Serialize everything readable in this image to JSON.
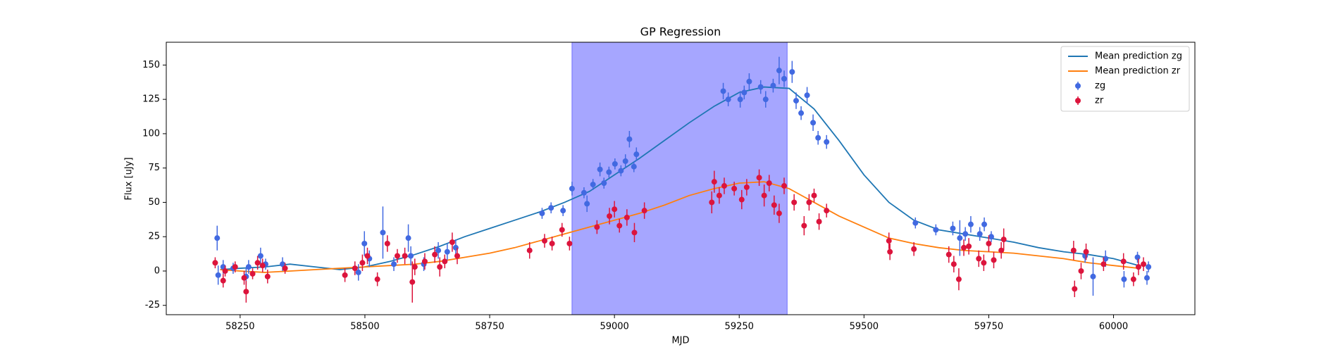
{
  "chart_data": {
    "type": "errorbar",
    "title": "GP Regression",
    "xlabel": "MJD",
    "ylabel": "Flux [uJy]",
    "xlim": [
      58102,
      60163
    ],
    "ylim": [
      -31.8,
      166.6
    ],
    "xticks": [
      58250,
      58500,
      58750,
      59000,
      59250,
      59500,
      59750,
      60000
    ],
    "yticks": [
      -25,
      0,
      25,
      50,
      75,
      100,
      125,
      150
    ],
    "legend": "upper right",
    "shaded_span": {
      "x": [
        58915,
        59346
      ],
      "color": "#a6a6ff"
    },
    "series": [
      {
        "name": "Mean prediction zg",
        "kind": "line",
        "color": "#1f77b4",
        "x": [
          58210,
          58250,
          58300,
          58350,
          58400,
          58450,
          58500,
          58550,
          58600,
          58650,
          58700,
          58750,
          58800,
          58850,
          58900,
          58950,
          59000,
          59050,
          59100,
          59150,
          59200,
          59250,
          59300,
          59350,
          59400,
          59450,
          59500,
          59550,
          59600,
          59650,
          59700,
          59750,
          59800,
          59850,
          59900,
          59950,
          60000,
          60050
        ],
        "values": [
          1,
          2,
          3,
          5,
          3,
          1,
          3,
          7,
          12,
          18,
          25,
          31,
          37,
          43,
          50,
          58,
          70,
          82,
          95,
          108,
          120,
          130,
          134,
          133,
          118,
          95,
          70,
          50,
          37,
          30,
          27,
          24,
          21,
          17,
          14,
          12,
          9,
          4
        ]
      },
      {
        "name": "Mean prediction zr",
        "kind": "line",
        "color": "#ff7f0e",
        "x": [
          58210,
          58250,
          58300,
          58350,
          58400,
          58450,
          58500,
          58550,
          58600,
          58650,
          58700,
          58750,
          58800,
          58850,
          58900,
          58950,
          59000,
          59050,
          59100,
          59150,
          59200,
          59250,
          59300,
          59350,
          59400,
          59450,
          59500,
          59550,
          59600,
          59650,
          59700,
          59750,
          59800,
          59850,
          59900,
          59950,
          60000,
          60050
        ],
        "values": [
          1,
          0,
          -1,
          0,
          1,
          2,
          3,
          4,
          5,
          7,
          10,
          13,
          17,
          22,
          27,
          32,
          37,
          42,
          48,
          55,
          60,
          64,
          65,
          60,
          50,
          40,
          32,
          24,
          20,
          17,
          15,
          14,
          13,
          11,
          9,
          6,
          4,
          2
        ]
      },
      {
        "name": "zg",
        "kind": "points",
        "color": "#4169e1",
        "x": [
          58204,
          58206,
          58216,
          58236,
          58262,
          58267,
          58291,
          58301,
          58335,
          58487,
          58499,
          58509,
          58536,
          58558,
          58587,
          58592,
          58618,
          58647,
          58665,
          58682,
          58855,
          58873,
          58897,
          58915,
          58939,
          58945,
          58957,
          58971,
          58979,
          58989,
          59001,
          59013,
          59022,
          59030,
          59039,
          59044,
          59218,
          59228,
          59252,
          59260,
          59270,
          59293,
          59303,
          59318,
          59330,
          59340,
          59356,
          59364,
          59374,
          59386,
          59398,
          59408,
          59425,
          59603,
          59644,
          59678,
          59692,
          59703,
          59714,
          59732,
          59741,
          59755,
          59943,
          59959,
          59984,
          60021,
          60048,
          60067,
          60070
        ],
        "values": [
          24,
          -3,
          3,
          2,
          -4,
          3,
          11,
          5,
          5,
          -1,
          20,
          9,
          28,
          5,
          24,
          11,
          5,
          15,
          14,
          17,
          42,
          46,
          44,
          60,
          57,
          49,
          63,
          74,
          64,
          72,
          78,
          73,
          80,
          96,
          76,
          85,
          131,
          125,
          125,
          130,
          138,
          134,
          125,
          135,
          146,
          140,
          145,
          124,
          115,
          128,
          108,
          97,
          94,
          35,
          30,
          31,
          24,
          27,
          34,
          27,
          34,
          25,
          11,
          -4,
          9,
          -6,
          10,
          -5,
          3
        ],
        "errors": [
          9,
          7,
          5,
          4,
          6,
          5,
          6,
          4,
          5,
          6,
          9,
          6,
          19,
          5,
          10,
          7,
          5,
          6,
          6,
          6,
          4,
          4,
          4,
          5,
          4,
          6,
          4,
          5,
          4,
          4,
          4,
          4,
          5,
          6,
          4,
          5,
          6,
          5,
          6,
          5,
          6,
          5,
          6,
          5,
          10,
          6,
          8,
          6,
          5,
          6,
          6,
          5,
          5,
          4,
          4,
          5,
          13,
          5,
          6,
          5,
          5,
          4,
          5,
          14,
          6,
          6,
          4,
          5,
          4
        ]
      },
      {
        "name": "zr",
        "kind": "points",
        "color": "#dc143c",
        "x": [
          58200,
          58216,
          58220,
          58240,
          58258,
          58262,
          58275,
          58285,
          58295,
          58305,
          58340,
          58460,
          58480,
          58495,
          58505,
          58525,
          58545,
          58565,
          58580,
          58595,
          58600,
          58620,
          58640,
          58650,
          58660,
          58675,
          58685,
          58830,
          58860,
          58875,
          58895,
          58910,
          58965,
          58990,
          59000,
          59010,
          59025,
          59040,
          59060,
          59195,
          59200,
          59210,
          59220,
          59240,
          59255,
          59265,
          59290,
          59300,
          59310,
          59320,
          59330,
          59340,
          59360,
          59380,
          59390,
          59400,
          59410,
          59425,
          59550,
          59552,
          59600,
          59670,
          59680,
          59690,
          59700,
          59710,
          59730,
          59740,
          59750,
          59760,
          59775,
          59780,
          59920,
          59922,
          59935,
          59945,
          59980,
          60020,
          60040,
          60050,
          60060
        ],
        "values": [
          6,
          -7,
          0,
          3,
          -5,
          -15,
          -2,
          6,
          4,
          -4,
          2,
          -3,
          2,
          6,
          11,
          -6,
          20,
          11,
          11,
          -8,
          3,
          7,
          12,
          3,
          7,
          21,
          11,
          15,
          22,
          20,
          30,
          20,
          32,
          40,
          45,
          33,
          39,
          28,
          44,
          50,
          65,
          55,
          62,
          60,
          52,
          61,
          68,
          55,
          64,
          48,
          42,
          62,
          50,
          33,
          50,
          55,
          36,
          44,
          22,
          14,
          16,
          12,
          5,
          -6,
          17,
          18,
          9,
          6,
          20,
          8,
          15,
          23,
          15,
          -13,
          0,
          14,
          5,
          7,
          -6,
          3,
          5
        ],
        "errors": [
          4,
          5,
          4,
          4,
          5,
          8,
          4,
          5,
          5,
          5,
          4,
          5,
          5,
          6,
          6,
          5,
          6,
          5,
          6,
          15,
          6,
          6,
          6,
          7,
          5,
          7,
          6,
          6,
          5,
          5,
          5,
          5,
          5,
          6,
          6,
          5,
          6,
          7,
          6,
          8,
          8,
          6,
          6,
          5,
          7,
          6,
          6,
          8,
          6,
          7,
          7,
          6,
          6,
          7,
          6,
          5,
          6,
          5,
          6,
          6,
          5,
          6,
          6,
          8,
          6,
          6,
          6,
          6,
          6,
          6,
          6,
          8,
          7,
          6,
          6,
          6,
          5,
          6,
          5,
          6,
          5
        ]
      }
    ]
  }
}
